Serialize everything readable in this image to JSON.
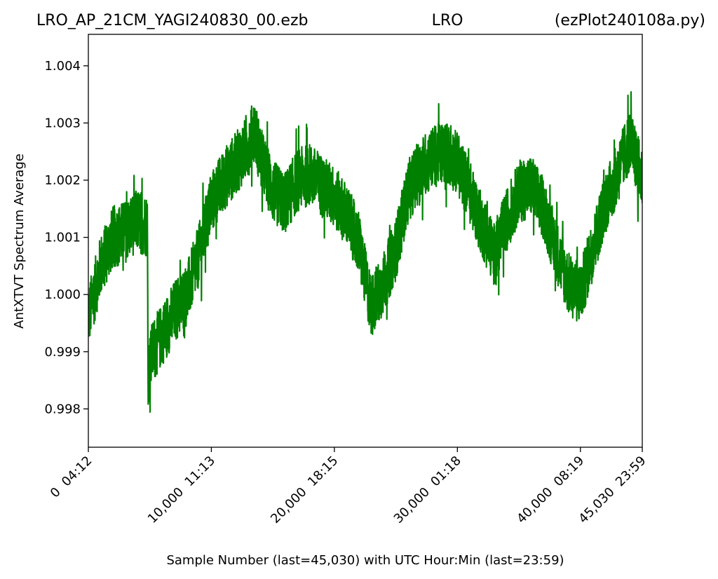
{
  "header": {
    "left": "LRO_AP_21CM_YAGI240830_00.ezb",
    "center": "LRO",
    "right": "(ezPlot240108a.py)"
  },
  "chart_data": {
    "type": "line",
    "xlabel": "Sample Number (last=45,030) with UTC Hour:Min (last=23:59)",
    "ylabel": "AntXTVT Spectrum Average",
    "xlim": [
      0,
      45030
    ],
    "ylim": [
      0.99733,
      1.00455
    ],
    "grid": false,
    "line_color": "#008000",
    "x_ticks": [
      {
        "value": 0,
        "label": "0  04:12"
      },
      {
        "value": 10000,
        "label": "10,000  11:13"
      },
      {
        "value": 20000,
        "label": "20,000  18:15"
      },
      {
        "value": 30000,
        "label": "30,000  01:18"
      },
      {
        "value": 40000,
        "label": "40,000  08:19"
      },
      {
        "value": 45030,
        "label": "45,030  23:59"
      }
    ],
    "y_ticks": [
      {
        "value": 0.998,
        "label": "0.998"
      },
      {
        "value": 0.999,
        "label": "0.999"
      },
      {
        "value": 1.0,
        "label": "1.000"
      },
      {
        "value": 1.001,
        "label": "1.001"
      },
      {
        "value": 1.002,
        "label": "1.002"
      },
      {
        "value": 1.003,
        "label": "1.003"
      },
      {
        "value": 1.004,
        "label": "1.004"
      }
    ],
    "series": [
      {
        "noise_amplitude": 0.00055,
        "x": [
          0,
          1000,
          2000,
          3000,
          4000,
          4800,
          4850,
          5200,
          6000,
          7000,
          8000,
          9000,
          10000,
          11000,
          12000,
          13000,
          13500,
          14000,
          15000,
          16000,
          17000,
          18000,
          19000,
          20000,
          21000,
          22000,
          22500,
          23000,
          24000,
          25000,
          26000,
          27000,
          28000,
          29000,
          30000,
          31000,
          32000,
          33000,
          34000,
          35000,
          36000,
          37000,
          38000,
          39000,
          40000,
          41000,
          42000,
          43000,
          44000,
          45030
        ],
        "y": [
          0.9996,
          1.0005,
          1.001,
          1.0011,
          1.0013,
          1.0012,
          0.9986,
          0.999,
          0.9993,
          0.9997,
          1.0,
          1.0007,
          1.0016,
          1.002,
          1.0023,
          1.0026,
          1.0029,
          1.0024,
          1.0018,
          1.0016,
          1.002,
          1.0021,
          1.0019,
          1.0017,
          1.0014,
          1.0009,
          1.0003,
          0.9998,
          1.0002,
          1.0008,
          1.0018,
          1.0022,
          1.0024,
          1.0025,
          1.0023,
          1.0018,
          1.0012,
          1.0007,
          1.0013,
          1.0018,
          1.0019,
          1.0015,
          1.0008,
          1.0002,
          1.0,
          1.0008,
          1.0016,
          1.0021,
          1.0027,
          1.002
        ]
      }
    ]
  }
}
